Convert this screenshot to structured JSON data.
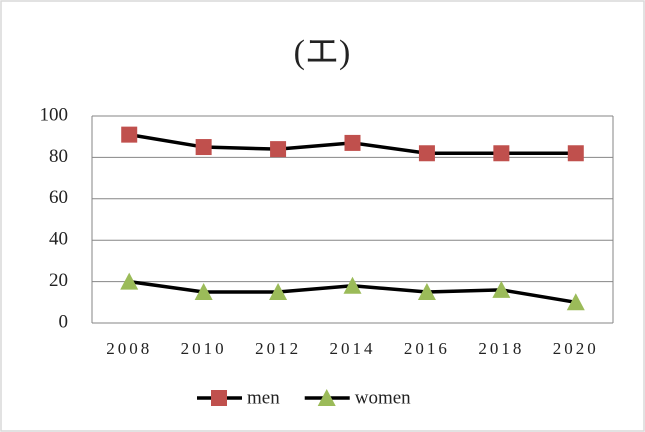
{
  "chart_data": {
    "type": "line",
    "title": "(エ)",
    "categories": [
      "2008",
      "2010",
      "2012",
      "2014",
      "2016",
      "2018",
      "2020"
    ],
    "series": [
      {
        "name": "men",
        "color": "#c0504d",
        "marker": "square",
        "values": [
          91,
          85,
          84,
          87,
          82,
          82,
          82
        ]
      },
      {
        "name": "women",
        "color": "#9bbb59",
        "marker": "triangle",
        "values": [
          20,
          15,
          15,
          18,
          15,
          16,
          10
        ]
      }
    ],
    "line_color": "#000000",
    "ylim": [
      0,
      100
    ],
    "yticks": [
      0,
      20,
      40,
      60,
      80,
      100
    ],
    "grid": true,
    "legend": "bottom"
  }
}
